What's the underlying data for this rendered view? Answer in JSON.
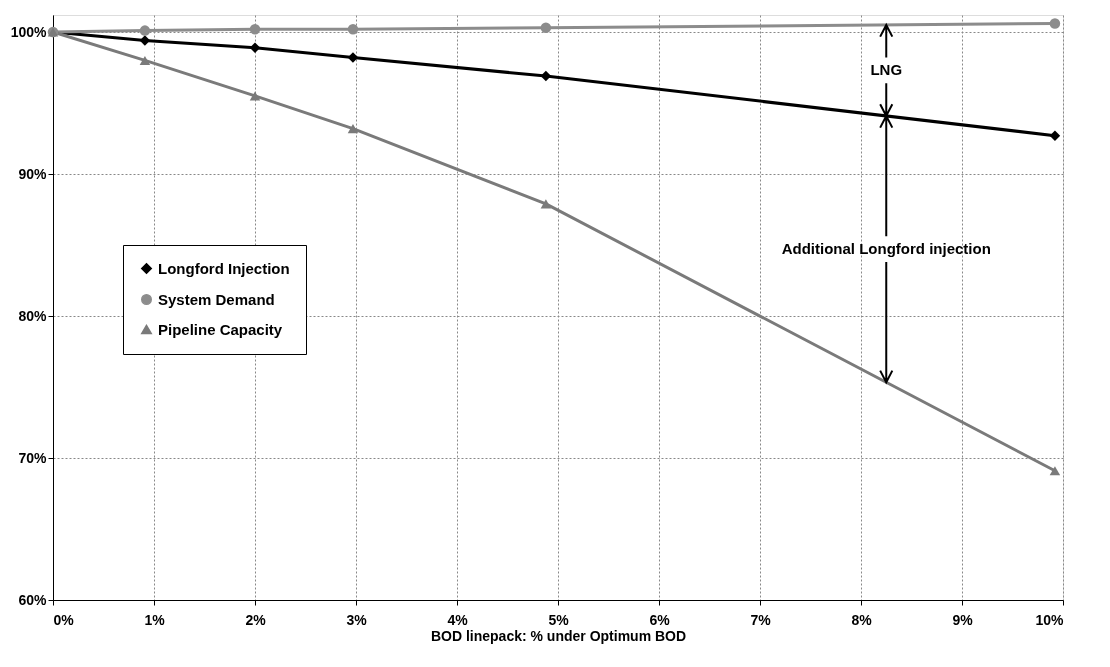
{
  "chart_data": {
    "type": "line",
    "xlabel": "BOD linepack: % under Optimum BOD",
    "xlim": [
      0,
      10
    ],
    "ylim": [
      60,
      101.2
    ],
    "xticks": [
      {
        "value": 0,
        "label": "0%"
      },
      {
        "value": 1,
        "label": "1%"
      },
      {
        "value": 2,
        "label": "2%"
      },
      {
        "value": 3,
        "label": "3%"
      },
      {
        "value": 4,
        "label": "4%"
      },
      {
        "value": 5,
        "label": "5%"
      },
      {
        "value": 6,
        "label": "6%"
      },
      {
        "value": 7,
        "label": "7%"
      },
      {
        "value": 8,
        "label": "8%"
      },
      {
        "value": 9,
        "label": "9%"
      },
      {
        "value": 10,
        "label": "10%"
      }
    ],
    "yticks": [
      {
        "value": 60,
        "label": "60%"
      },
      {
        "value": 70,
        "label": "70%"
      },
      {
        "value": 80,
        "label": "80%"
      },
      {
        "value": 90,
        "label": "90%"
      },
      {
        "value": 100,
        "label": "100%"
      }
    ],
    "grid": true,
    "legend": "left",
    "line_style": "solid",
    "series": [
      {
        "name": "Longford Injection",
        "color": "#000000",
        "marker": "diamond",
        "x": [
          0,
          0.91,
          2.0,
          2.97,
          4.88,
          9.92
        ],
        "values": [
          100,
          99.4,
          98.9,
          98.2,
          96.9,
          92.7
        ]
      },
      {
        "name": "System Demand",
        "color": "#8c8c8c",
        "marker": "circle",
        "x": [
          0,
          0.91,
          2.0,
          2.97,
          4.88,
          9.92
        ],
        "values": [
          100,
          100.1,
          100.2,
          100.2,
          100.3,
          100.6
        ]
      },
      {
        "name": "Pipeline Capacity",
        "color": "#7a7a7a",
        "marker": "triangle",
        "x": [
          0,
          0.91,
          2.0,
          2.97,
          4.88,
          9.92
        ],
        "values": [
          100,
          98.0,
          95.5,
          93.2,
          87.9,
          69.1
        ]
      }
    ],
    "annotations": [
      "LNG",
      "Additional Longford injection"
    ]
  }
}
